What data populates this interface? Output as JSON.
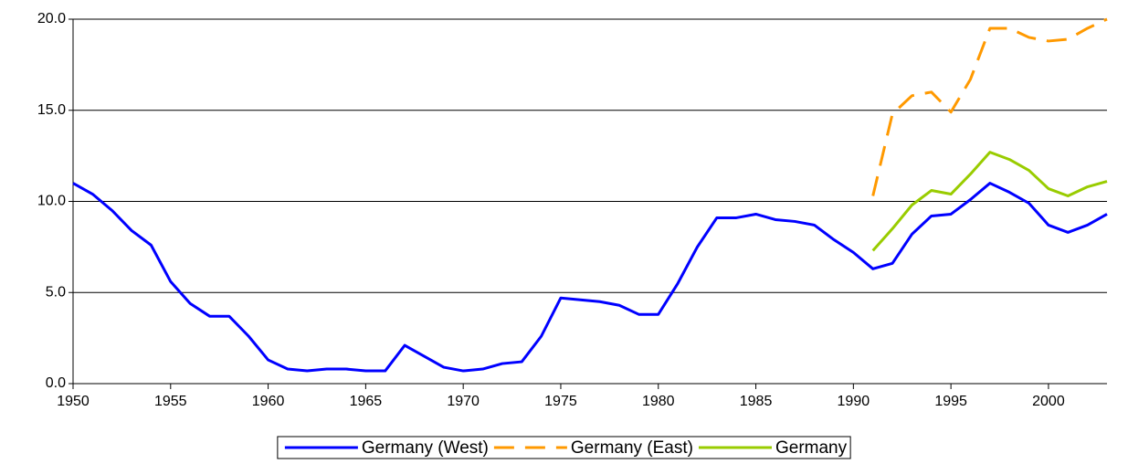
{
  "chart_data": {
    "type": "line",
    "x": [
      1950,
      1951,
      1952,
      1953,
      1954,
      1955,
      1956,
      1957,
      1958,
      1959,
      1960,
      1961,
      1962,
      1963,
      1964,
      1965,
      1966,
      1967,
      1968,
      1969,
      1970,
      1971,
      1972,
      1973,
      1974,
      1975,
      1976,
      1977,
      1978,
      1979,
      1980,
      1981,
      1982,
      1983,
      1984,
      1985,
      1986,
      1987,
      1988,
      1989,
      1990,
      1991,
      1992,
      1993,
      1994,
      1995,
      1996,
      1997,
      1998,
      1999,
      2000,
      2001,
      2002,
      2003
    ],
    "series": [
      {
        "name": "Germany (West)",
        "color": "#0000ff",
        "dash": "solid",
        "values": [
          11.0,
          10.4,
          9.5,
          8.4,
          7.6,
          5.6,
          4.4,
          3.7,
          3.7,
          2.6,
          1.3,
          0.8,
          0.7,
          0.8,
          0.8,
          0.7,
          0.7,
          2.1,
          1.5,
          0.9,
          0.7,
          0.8,
          1.1,
          1.2,
          2.6,
          4.7,
          4.6,
          4.5,
          4.3,
          3.8,
          3.8,
          5.5,
          7.5,
          9.1,
          9.1,
          9.3,
          9.0,
          8.9,
          8.7,
          7.9,
          7.2,
          6.3,
          6.6,
          8.2,
          9.2,
          9.3,
          10.1,
          11.0,
          10.5,
          9.9,
          8.7,
          8.3,
          8.7,
          9.3
        ]
      },
      {
        "name": "Germany (East)",
        "color": "#ff9900",
        "dash": "dashed",
        "values": [
          null,
          null,
          null,
          null,
          null,
          null,
          null,
          null,
          null,
          null,
          null,
          null,
          null,
          null,
          null,
          null,
          null,
          null,
          null,
          null,
          null,
          null,
          null,
          null,
          null,
          null,
          null,
          null,
          null,
          null,
          null,
          null,
          null,
          null,
          null,
          null,
          null,
          null,
          null,
          null,
          null,
          10.3,
          14.8,
          15.8,
          16.0,
          14.9,
          16.7,
          19.5,
          19.5,
          19.0,
          18.8,
          18.9,
          19.5,
          20.0
        ]
      },
      {
        "name": "Germany",
        "color": "#99cc00",
        "dash": "solid",
        "values": [
          null,
          null,
          null,
          null,
          null,
          null,
          null,
          null,
          null,
          null,
          null,
          null,
          null,
          null,
          null,
          null,
          null,
          null,
          null,
          null,
          null,
          null,
          null,
          null,
          null,
          null,
          null,
          null,
          null,
          null,
          null,
          null,
          null,
          null,
          null,
          null,
          null,
          null,
          null,
          null,
          null,
          7.3,
          8.5,
          9.8,
          10.6,
          10.4,
          11.5,
          12.7,
          12.3,
          11.7,
          10.7,
          10.3,
          10.8,
          11.1
        ]
      }
    ],
    "xlim": [
      1950,
      2003
    ],
    "xticks": [
      1950,
      1955,
      1960,
      1965,
      1970,
      1975,
      1980,
      1985,
      1990,
      1995,
      2000
    ],
    "ylim": [
      0,
      20
    ],
    "yticks": [
      {
        "value": 0,
        "label": "0.0"
      },
      {
        "value": 5,
        "label": "5.0"
      },
      {
        "value": 10,
        "label": "10.0"
      },
      {
        "value": 15,
        "label": "15.0"
      },
      {
        "value": 20,
        "label": "20.0"
      }
    ],
    "grid": true,
    "legend": "bottom"
  }
}
